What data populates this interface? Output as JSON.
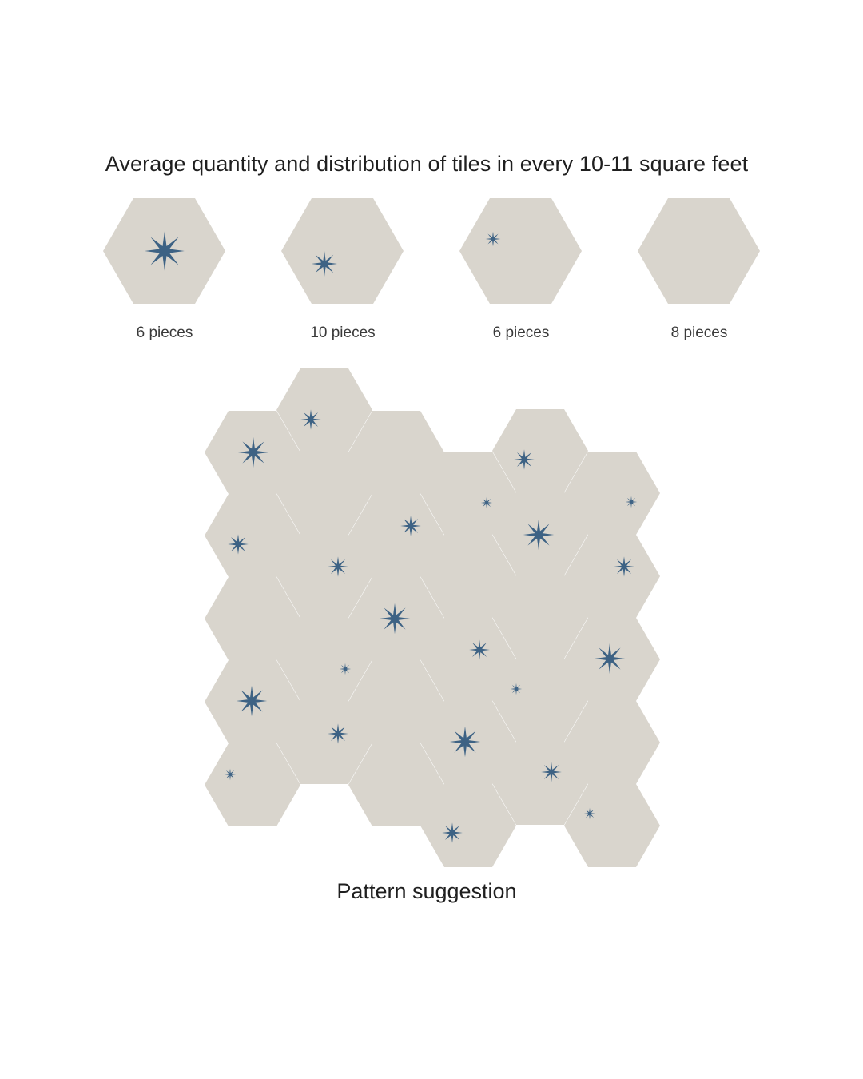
{
  "heading": "Average quantity and distribution of tiles in every 10-11 square feet",
  "colors": {
    "tile": "#d9d5cd",
    "star": "#3d6284",
    "background": "#ffffff"
  },
  "tiles": [
    {
      "variant": "large-star-center",
      "count_label": "6 pieces"
    },
    {
      "variant": "medium-star",
      "count_label": "10 pieces"
    },
    {
      "variant": "small-star",
      "count_label": "6 pieces"
    },
    {
      "variant": "plain",
      "count_label": "8 pieces"
    }
  ],
  "pattern_caption": "Pattern suggestion"
}
